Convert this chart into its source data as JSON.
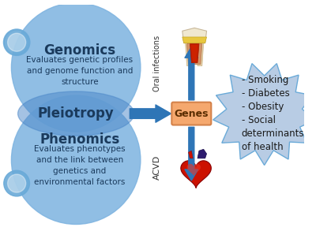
{
  "bg_color": "#ffffff",
  "circle_color": "#7db3e0",
  "circle_inner_color": "#5b9bd5",
  "overlap_band_color": "#4a86c8",
  "small_circle_color": "#6aaad8",
  "arrow_color": "#2e75b6",
  "genes_box_color": "#f5a86e",
  "genes_box_edge": "#d4824a",
  "starburst_color": "#b8cce4",
  "starburst_edge": "#6aaad8",
  "genomics_title": "Genomics",
  "genomics_text": "Evaluates genetic profiles\nand genome function and\nstructure",
  "pleiotropy_text": "Pleiotropy",
  "phenomics_title": "Phenomics",
  "phenomics_text": "Evaluates phenotypes\nand the link between\ngenetics and\nenvironmental factors",
  "genes_label": "Genes",
  "oral_label": "Oral infections",
  "acvd_label": "ACVD",
  "risk_factors": "- Smoking\n- Diabetes\n- Obesity\n- Social\ndeterminants\nof health",
  "title_fontsize": 12,
  "body_fontsize": 7.5,
  "pleiotropy_fontsize": 12,
  "genes_fontsize": 9,
  "side_label_fontsize": 7,
  "risk_fontsize": 8.5
}
